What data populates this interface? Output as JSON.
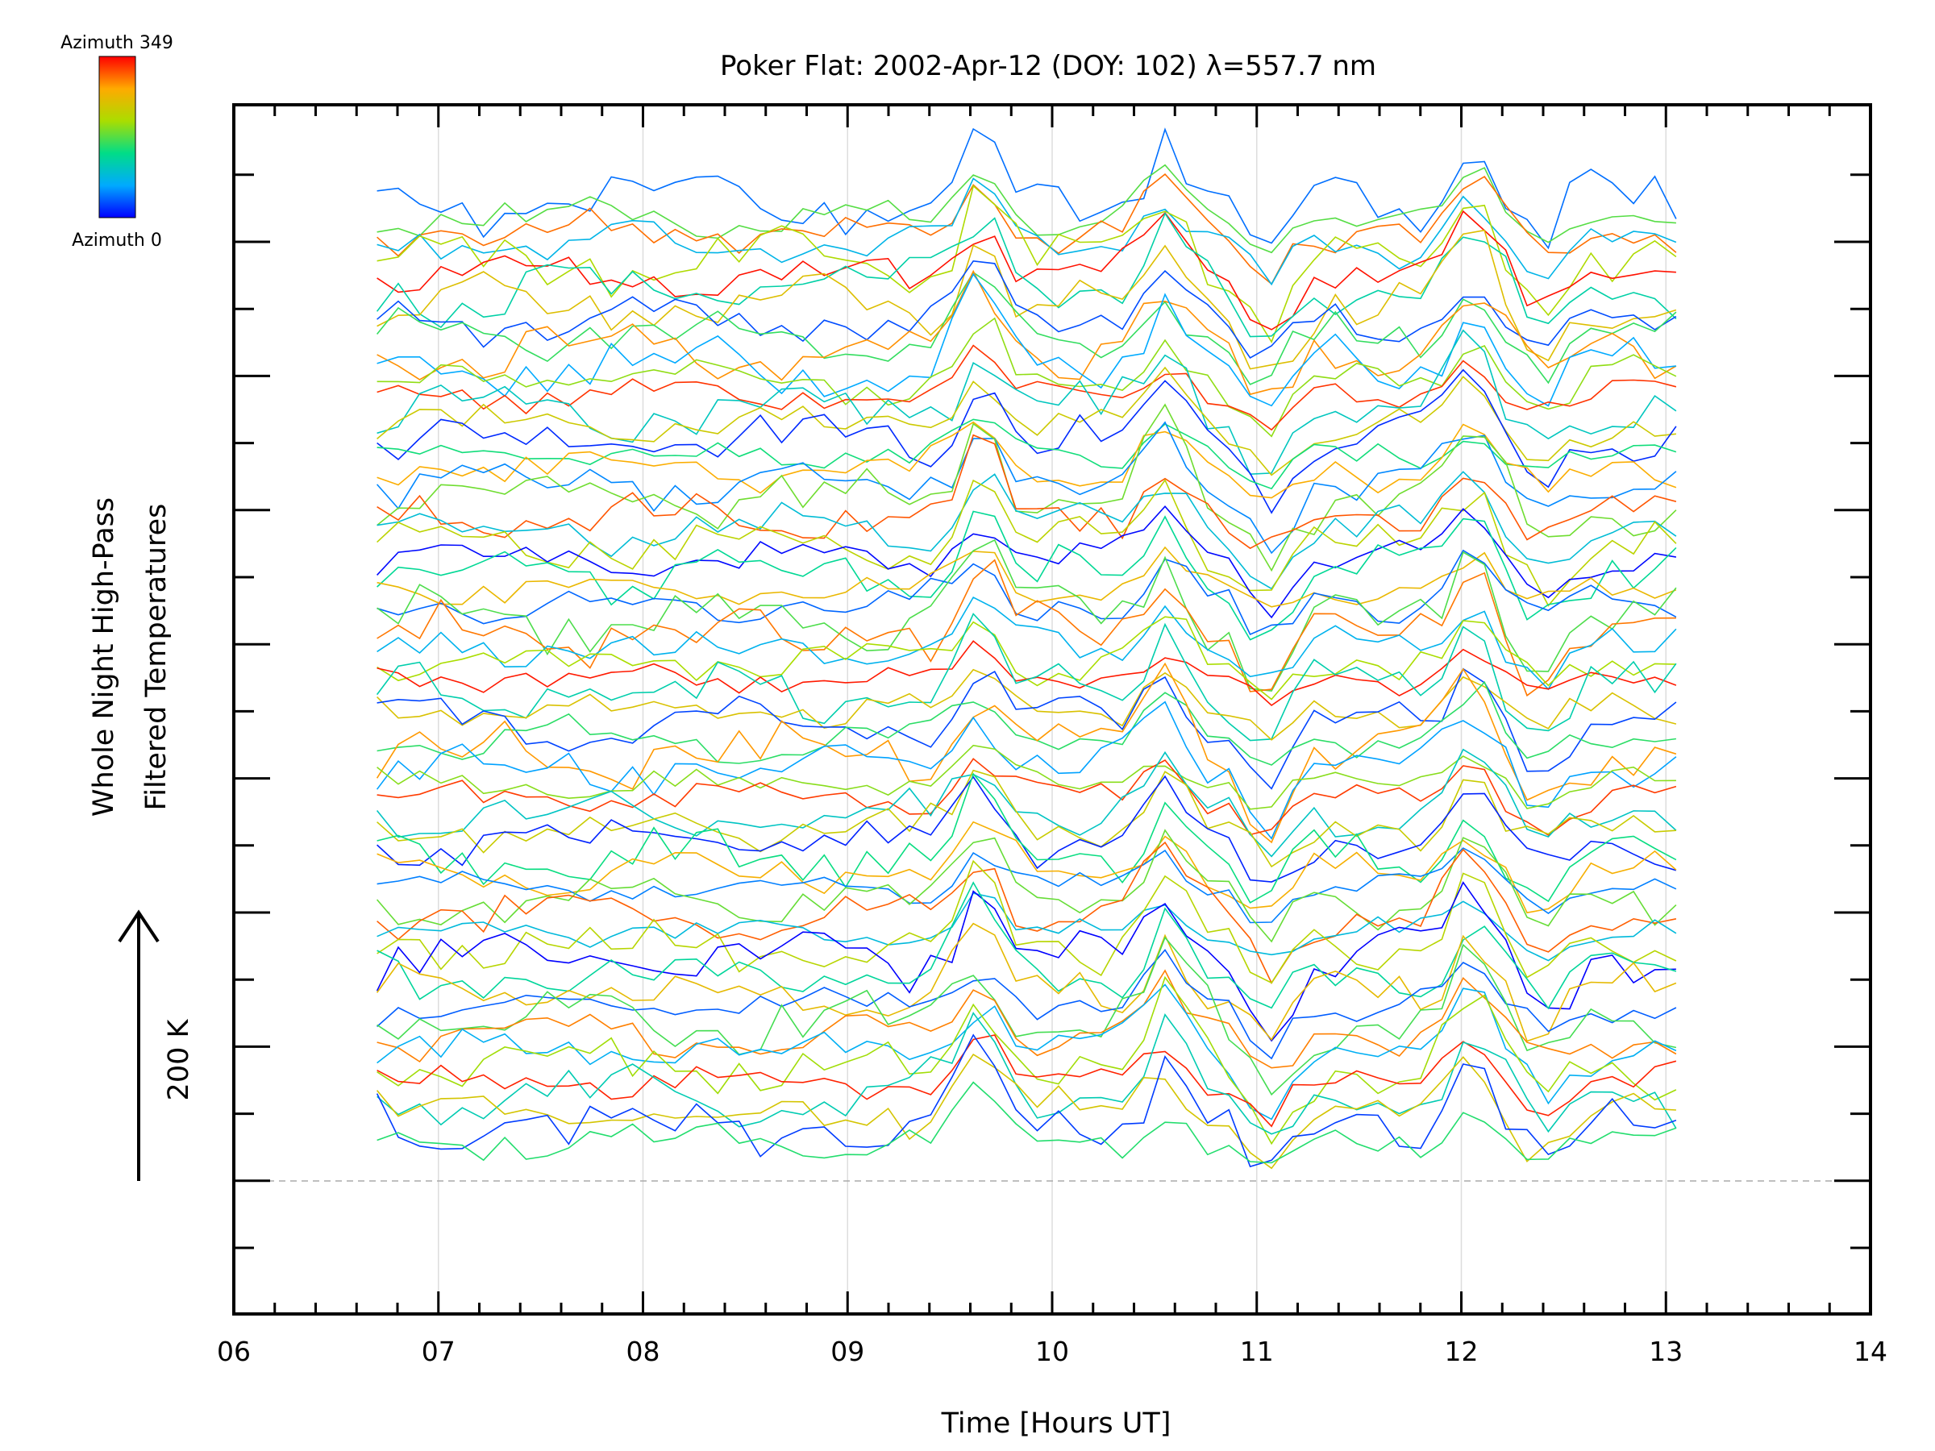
{
  "chart_data": {
    "type": "line",
    "title": "Poker Flat: 2002-Apr-12 (DOY: 102) λ=557.7 nm",
    "xlabel": "Time [Hours UT]",
    "ylabel_line1": "Whole Night High-Pass",
    "ylabel_line2": "Filtered Temperatures",
    "scale_label": "200 K",
    "xlim": [
      6,
      14
    ],
    "x_ticks": [
      6,
      7,
      8,
      9,
      10,
      11,
      12,
      13,
      14
    ],
    "x_tick_labels": [
      "06",
      "07",
      "08",
      "09",
      "10",
      "11",
      "12",
      "13",
      "14"
    ],
    "grid_x": [
      7,
      8,
      9,
      10,
      11,
      12,
      13
    ],
    "series_count": 64,
    "azimuth_range": [
      0,
      349
    ],
    "time_range": [
      6.7,
      13.05
    ],
    "features": [
      {
        "hour": 9.65,
        "amplitude": 1.0
      },
      {
        "hour": 10.55,
        "amplitude": 0.9
      },
      {
        "hour": 11.05,
        "amplitude": -0.85
      },
      {
        "hour": 12.05,
        "amplitude": 0.95
      },
      {
        "hour": 12.4,
        "amplitude": -0.55
      }
    ],
    "colorbar": {
      "top_label": "Azimuth 349",
      "bottom_label": "Azimuth 0",
      "colors": [
        "#0000ff",
        "#00aaff",
        "#00dd88",
        "#aadd00",
        "#ffaa00",
        "#ff0000"
      ]
    }
  }
}
